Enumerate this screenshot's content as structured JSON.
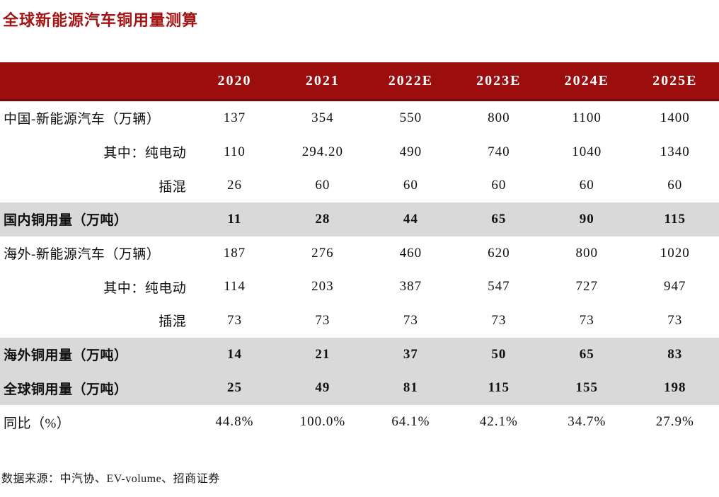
{
  "title": "全球新能源汽车铜用量测算",
  "source": "数据来源：中汽协、EV-volume、招商证券",
  "colors": {
    "title": "#A31414",
    "header_bg": "#9C0D0D",
    "header_border": "#7A0808",
    "shaded_row": "#D9D9D9"
  },
  "chart_data": {
    "type": "table",
    "title": "全球新能源汽车铜用量测算",
    "columns": [
      "",
      "2020",
      "2021",
      "2022E",
      "2023E",
      "2024E",
      "2025E"
    ],
    "rows": [
      {
        "label": "中国-新能源汽车（万辆）",
        "values": [
          "137",
          "354",
          "550",
          "800",
          "1100",
          "1400"
        ],
        "style": "normal",
        "label_align": "left"
      },
      {
        "label": "其中：纯电动",
        "values": [
          "110",
          "294.20",
          "490",
          "740",
          "1040",
          "1340"
        ],
        "style": "normal",
        "label_align": "right"
      },
      {
        "label": "插混",
        "values": [
          "26",
          "60",
          "60",
          "60",
          "60",
          "60"
        ],
        "style": "normal",
        "label_align": "right"
      },
      {
        "label": "国内铜用量（万吨）",
        "values": [
          "11",
          "28",
          "44",
          "65",
          "90",
          "115"
        ],
        "style": "bold-shaded",
        "label_align": "left"
      },
      {
        "label": "海外-新能源汽车（万辆）",
        "values": [
          "187",
          "276",
          "460",
          "620",
          "800",
          "1020"
        ],
        "style": "normal",
        "label_align": "left"
      },
      {
        "label": "其中：纯电动",
        "values": [
          "114",
          "203",
          "387",
          "547",
          "727",
          "947"
        ],
        "style": "normal",
        "label_align": "right"
      },
      {
        "label": "插混",
        "values": [
          "73",
          "73",
          "73",
          "73",
          "73",
          "73"
        ],
        "style": "normal",
        "label_align": "right"
      },
      {
        "label": "海外铜用量（万吨）",
        "values": [
          "14",
          "21",
          "37",
          "50",
          "65",
          "83"
        ],
        "style": "bold-shaded",
        "label_align": "left"
      },
      {
        "label": "全球铜用量（万吨）",
        "values": [
          "25",
          "49",
          "81",
          "115",
          "155",
          "198"
        ],
        "style": "bold-shaded",
        "label_align": "left"
      },
      {
        "label": "同比（%）",
        "values": [
          "44.8%",
          "100.0%",
          "64.1%",
          "42.1%",
          "34.7%",
          "27.9%"
        ],
        "style": "normal",
        "label_align": "left"
      }
    ]
  }
}
